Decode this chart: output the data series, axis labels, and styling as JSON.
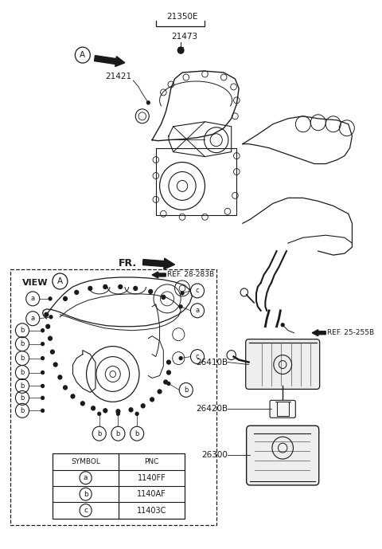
{
  "bg": "#ffffff",
  "lc": "#1a1a1a",
  "figsize": [
    4.8,
    6.89
  ],
  "dpi": 100,
  "table_data": [
    [
      "a",
      "1140FF"
    ],
    [
      "b",
      "1140AF"
    ],
    [
      "c",
      "11403C"
    ]
  ]
}
